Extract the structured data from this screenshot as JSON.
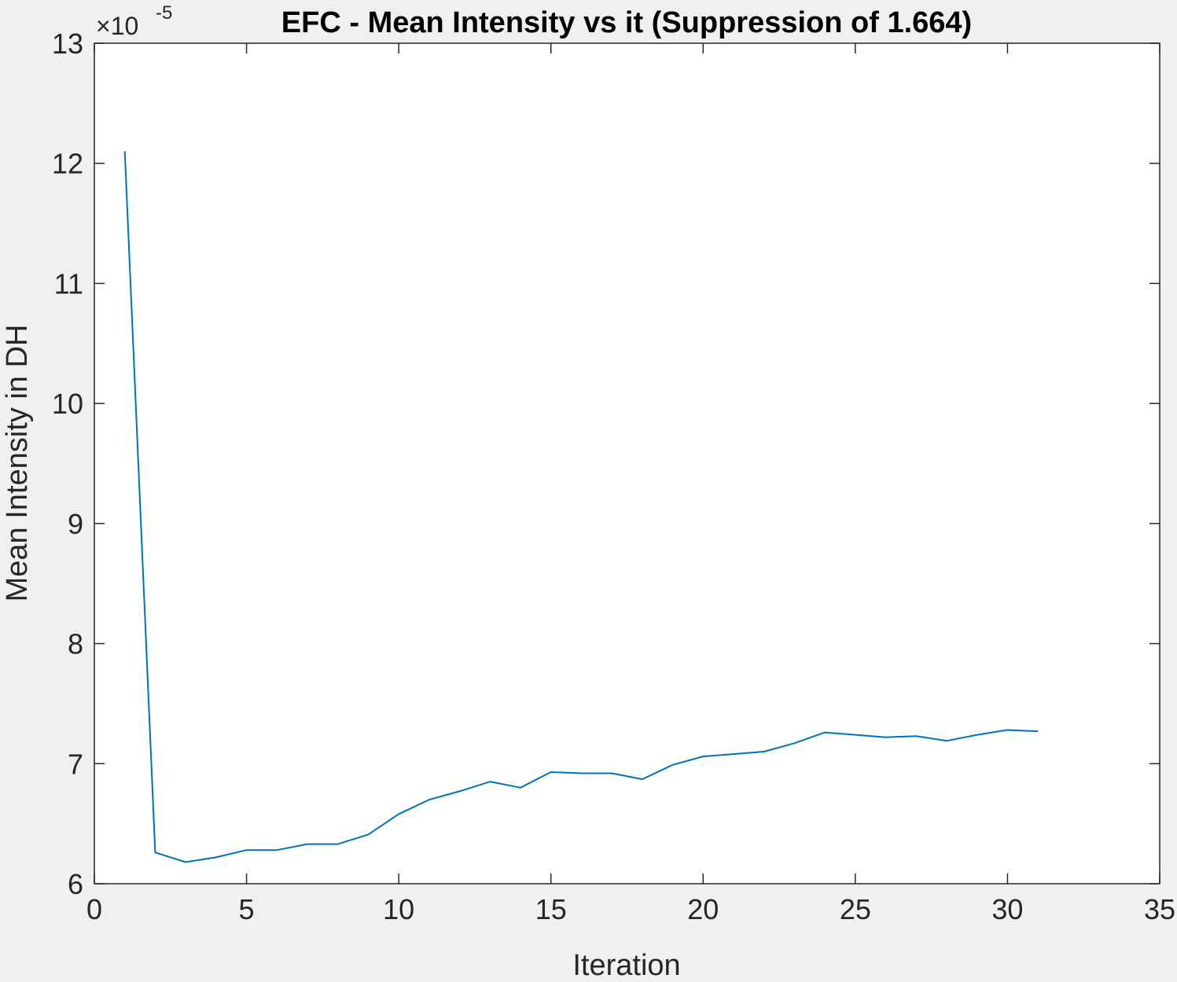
{
  "chart_data": {
    "type": "line",
    "title": "EFC - Mean Intensity vs it (Suppression of 1.664)",
    "xlabel": "Iteration",
    "ylabel": "Mean Intensity in DH",
    "y_exponent_label": "×10",
    "y_exponent_power": "-5",
    "xlim": [
      0,
      35
    ],
    "ylim": [
      6,
      13
    ],
    "xticks": [
      0,
      5,
      10,
      15,
      20,
      25,
      30,
      35
    ],
    "yticks": [
      6,
      7,
      8,
      9,
      10,
      11,
      12,
      13
    ],
    "grid": false,
    "line_color": "#0072bd",
    "series": [
      {
        "x": [
          1,
          2,
          3,
          4,
          5,
          6,
          7,
          8,
          9,
          10,
          11,
          12,
          13,
          14,
          15,
          16,
          17,
          18,
          19,
          20,
          21,
          22,
          23,
          24,
          25,
          26,
          27,
          28,
          29,
          30,
          31
        ],
        "values": [
          12.1,
          6.26,
          6.18,
          6.22,
          6.28,
          6.28,
          6.33,
          6.33,
          6.41,
          6.58,
          6.7,
          6.77,
          6.85,
          6.8,
          6.93,
          6.92,
          6.92,
          6.87,
          6.99,
          7.06,
          7.08,
          7.1,
          7.17,
          7.26,
          7.24,
          7.22,
          7.23,
          7.19,
          7.24,
          7.28,
          7.27
        ]
      }
    ]
  }
}
